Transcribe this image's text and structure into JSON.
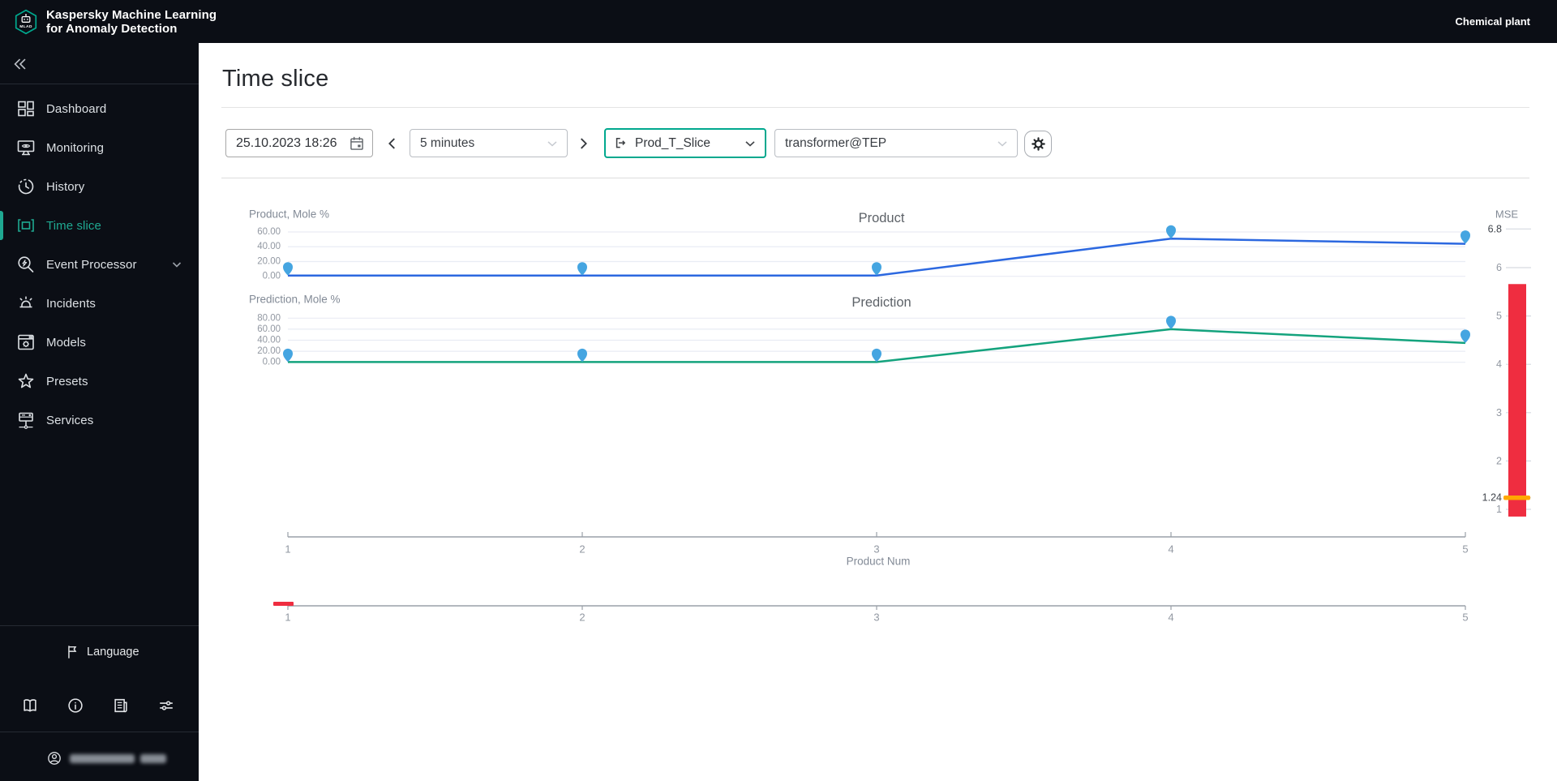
{
  "app": {
    "logo_text": "MLAD",
    "title_line1": "Kaspersky Machine Learning",
    "title_line2": "for Anomaly Detection",
    "environment": "Chemical plant"
  },
  "sidebar": {
    "items": [
      {
        "label": "Dashboard"
      },
      {
        "label": "Monitoring"
      },
      {
        "label": "History"
      },
      {
        "label": "Time slice",
        "selected": true
      },
      {
        "label": "Event Processor",
        "expandable": true
      },
      {
        "label": "Incidents"
      },
      {
        "label": "Models"
      },
      {
        "label": "Presets"
      },
      {
        "label": "Services"
      }
    ],
    "language_label": "Language",
    "accent_color": "#00a88e"
  },
  "page": {
    "title": "Time slice"
  },
  "toolbar": {
    "datetime_value": "25.10.2023  18:26",
    "interval_value": "5 minutes",
    "slice_value": "Prod_T_Slice",
    "model_value": "transformer@TEP"
  },
  "chart_data": [
    {
      "id": "product",
      "type": "line",
      "title": "Product",
      "unit_label": "Product, Mole %",
      "x": [
        1,
        2,
        3,
        4,
        5
      ],
      "values": [
        1,
        1,
        1,
        51,
        44
      ],
      "yticks": [
        {
          "value": 0,
          "label": "0.00"
        },
        {
          "value": 20,
          "label": "20.00"
        },
        {
          "value": 40,
          "label": "40.00"
        },
        {
          "value": 60,
          "label": "60.00"
        }
      ],
      "line_color": "#2c68e0",
      "marker_color": "#45a5e1"
    },
    {
      "id": "prediction",
      "type": "line",
      "title": "Prediction",
      "unit_label": "Prediction, Mole %",
      "x": [
        1,
        2,
        3,
        4,
        5
      ],
      "values": [
        0.5,
        0.5,
        0.5,
        60,
        35
      ],
      "yticks": [
        {
          "value": 0,
          "label": "0.00"
        },
        {
          "value": 20,
          "label": "20.00"
        },
        {
          "value": 40,
          "label": "40.00"
        },
        {
          "value": 60,
          "label": "60.00"
        },
        {
          "value": 80,
          "label": "80.00"
        }
      ],
      "line_color": "#14a37d",
      "marker_color": "#45a5e1"
    },
    {
      "id": "mse",
      "type": "gauge",
      "title": "MSE",
      "ticks": [
        {
          "value": 6.8,
          "label": "6.8",
          "emphasis": true
        },
        {
          "value": 6,
          "label": "6"
        },
        {
          "value": 5,
          "label": "5"
        },
        {
          "value": 4,
          "label": "4"
        },
        {
          "value": 3,
          "label": "3"
        },
        {
          "value": 2,
          "label": "2"
        },
        {
          "value": 1.24,
          "label": "1.24",
          "emphasis": true
        },
        {
          "value": 1,
          "label": "1"
        }
      ],
      "bar_range": [
        0.85,
        5.66
      ],
      "threshold": 1.24,
      "bar_color": "#ef2d40",
      "threshold_color": "#ffa800"
    },
    {
      "id": "x-axis",
      "type": "axis",
      "label": "Product Num",
      "ticks": [
        "1",
        "2",
        "3",
        "4",
        "5"
      ]
    },
    {
      "id": "range-selector",
      "type": "brush",
      "ticks": [
        "1",
        "2",
        "3",
        "4",
        "5"
      ],
      "selection_color": "#ef2d40"
    }
  ]
}
